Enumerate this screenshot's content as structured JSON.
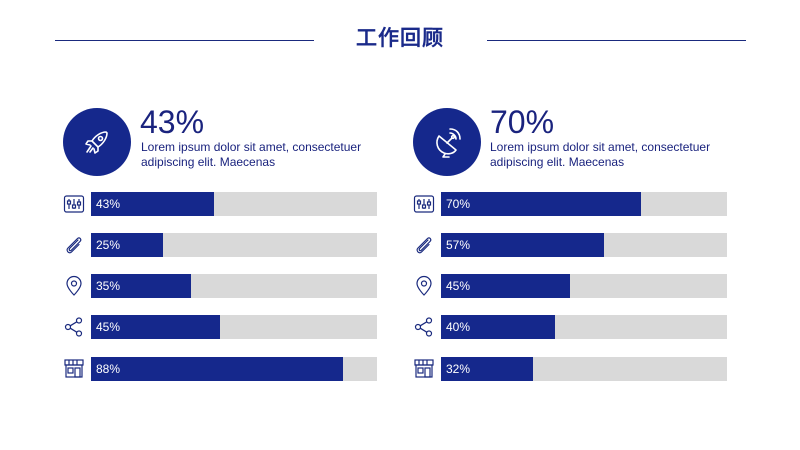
{
  "header": {
    "title": "工作回顾"
  },
  "theme": {
    "accent": "#15288c",
    "track": "#d9d9d9"
  },
  "panels": [
    {
      "icon": "rocket-icon",
      "big_value": "43%",
      "description": "Lorem ipsum dolor sit amet, consectetuer adipiscing elit. Maecenas",
      "bars": [
        {
          "icon": "sliders-icon",
          "label": "43%",
          "value": 0.43
        },
        {
          "icon": "paperclip-icon",
          "label": "25%",
          "value": 0.25
        },
        {
          "icon": "location-pin-icon",
          "label": "35%",
          "value": 0.35
        },
        {
          "icon": "share-icon",
          "label": "45%",
          "value": 0.45
        },
        {
          "icon": "storefront-icon",
          "label": "88%",
          "value": 0.88
        }
      ]
    },
    {
      "icon": "satellite-dish-icon",
      "big_value": "70%",
      "description": "Lorem ipsum dolor sit amet, consectetuer adipiscing elit. Maecenas",
      "bars": [
        {
          "icon": "sliders-icon",
          "label": "70%",
          "value": 0.7
        },
        {
          "icon": "paperclip-icon",
          "label": "57%",
          "value": 0.57
        },
        {
          "icon": "location-pin-icon",
          "label": "45%",
          "value": 0.45
        },
        {
          "icon": "share-icon",
          "label": "40%",
          "value": 0.4
        },
        {
          "icon": "storefront-icon",
          "label": "32%",
          "value": 0.32
        }
      ]
    }
  ]
}
